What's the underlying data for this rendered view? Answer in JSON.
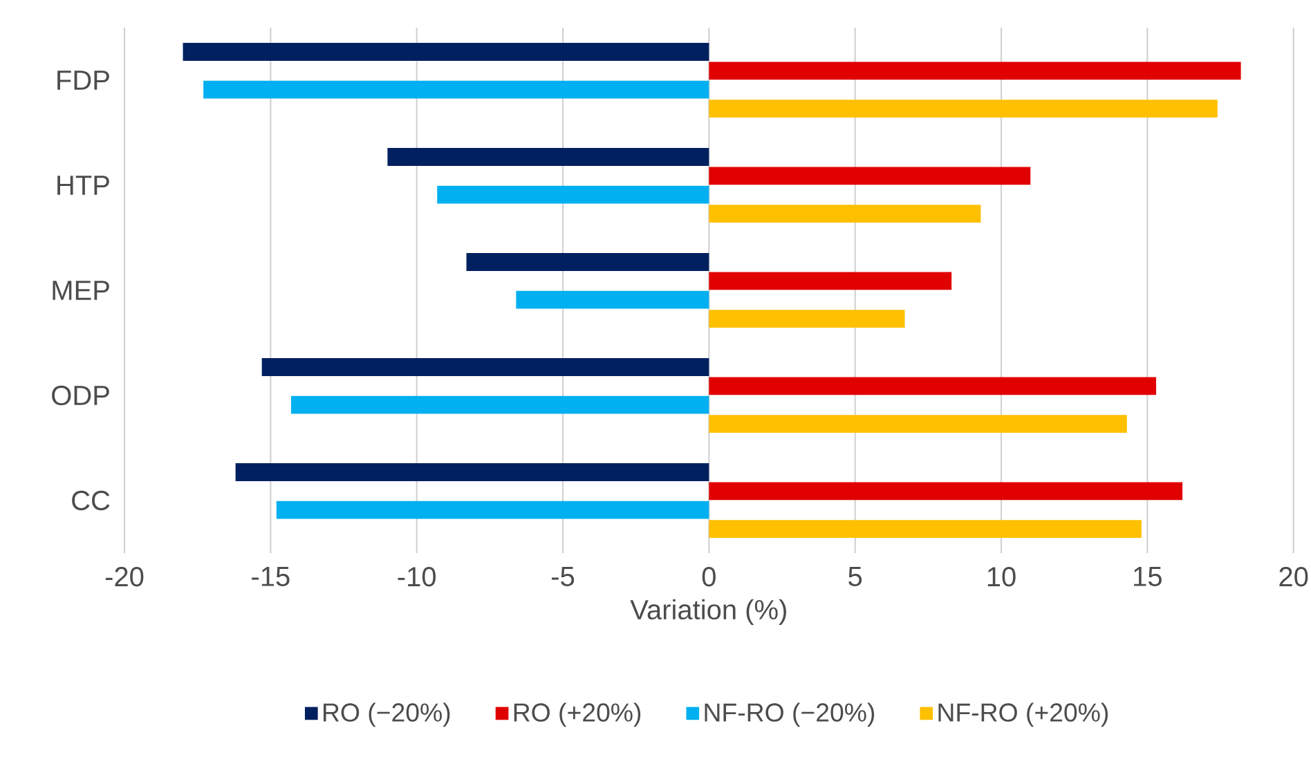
{
  "chart_data": {
    "type": "bar",
    "orientation": "horizontal",
    "xlabel": "Variation (%)",
    "categories": [
      "FDP",
      "HTP",
      "MEP",
      "ODP",
      "CC"
    ],
    "series": [
      {
        "name": "RO (−20%)",
        "color": "#002060",
        "values": [
          -18.0,
          -11.0,
          -8.3,
          -15.3,
          -16.2
        ]
      },
      {
        "name": "RO (+20%)",
        "color": "#e00000",
        "values": [
          18.2,
          11.0,
          8.3,
          15.3,
          16.2
        ]
      },
      {
        "name": "NF-RO (−20%)",
        "color": "#00b0f0",
        "values": [
          -17.3,
          -9.3,
          -6.6,
          -14.3,
          -14.8
        ]
      },
      {
        "name": "NF-RO (+20%)",
        "color": "#ffc000",
        "values": [
          17.4,
          9.3,
          6.7,
          14.3,
          14.8
        ]
      }
    ],
    "xlim": [
      -20,
      20
    ],
    "xticks": [
      -20,
      -15,
      -10,
      -5,
      0,
      5,
      10,
      15,
      20
    ],
    "grid": "x",
    "legend": "bottom"
  }
}
